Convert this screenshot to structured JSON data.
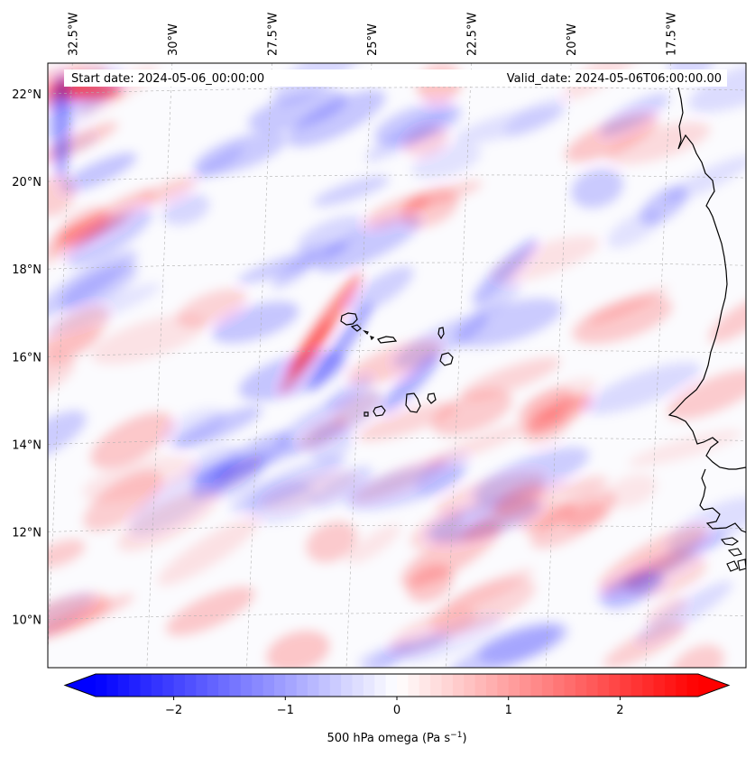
{
  "header": {
    "start_date": "Start date: 2024-05-06_00:00:00",
    "valid_date": "Valid_date: 2024-05-06T06:00:00.00"
  },
  "map": {
    "lon_ticks": [
      {
        "value": -32.5,
        "label": "32.5°W"
      },
      {
        "value": -30.0,
        "label": "30°W"
      },
      {
        "value": -27.5,
        "label": "27.5°W"
      },
      {
        "value": -25.0,
        "label": "25°W"
      },
      {
        "value": -22.5,
        "label": "22.5°W"
      },
      {
        "value": -20.0,
        "label": "20°W"
      },
      {
        "value": -17.5,
        "label": "17.5°W"
      }
    ],
    "lat_ticks": [
      {
        "value": 22,
        "label": "22°N"
      },
      {
        "value": 20,
        "label": "20°N"
      },
      {
        "value": 18,
        "label": "18°N"
      },
      {
        "value": 16,
        "label": "16°N"
      },
      {
        "value": 14,
        "label": "14°N"
      },
      {
        "value": 12,
        "label": "12°N"
      },
      {
        "value": 10,
        "label": "10°N"
      }
    ],
    "lon_range": [
      -32.8,
      -15.3
    ],
    "lat_range": [
      8.9,
      22.7
    ],
    "gridlines": true,
    "colors": {
      "negative": "#0000ff",
      "zero": "#ffffff",
      "positive": "#ff0000",
      "coastline": "#000000"
    }
  },
  "colorbar": {
    "label": "500 hPa omega (Pa s",
    "label_sup": "−1",
    "label_end": ")",
    "vmin": -2.7,
    "vmax": 2.7,
    "ticks": [
      {
        "value": -2,
        "label": "−2"
      },
      {
        "value": -1,
        "label": "−1"
      },
      {
        "value": 0,
        "label": "0"
      },
      {
        "value": 1,
        "label": "1"
      },
      {
        "value": 2,
        "label": "2"
      }
    ],
    "extend": "both"
  }
}
